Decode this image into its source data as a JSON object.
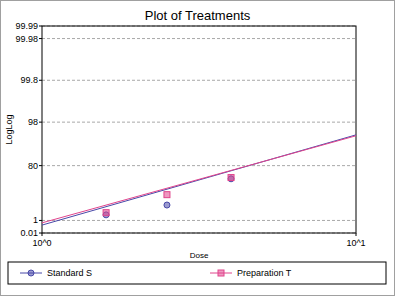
{
  "chart_data": {
    "type": "scatter",
    "title": "Plot of Treatments",
    "x_label": "Dose",
    "y_label": "LogLog",
    "log": true,
    "grid": true,
    "legend": "bottom",
    "xlim": [
      1,
      10
    ],
    "xticks": [
      {
        "value": 1,
        "label": "10^0"
      },
      {
        "value": 10,
        "label": "10^1"
      }
    ],
    "ylim": [
      0.01,
      99.99
    ],
    "yticks": [
      0.01,
      1,
      80,
      98,
      99.8,
      99.98,
      99.99
    ],
    "x": [
      1.6,
      2.5,
      4
    ],
    "fit_x": [
      1,
      10
    ],
    "series": [
      {
        "name": "Standard S",
        "color": "#4848a8",
        "marker": "circle",
        "values": [
          3.4,
          14,
          63
        ],
        "fit": [
          0.26,
          96
        ]
      },
      {
        "name": "Preparation T",
        "color": "#e0448c",
        "marker": "square",
        "values": [
          5,
          33,
          65
        ],
        "fit": [
          0.52,
          95.8
        ]
      }
    ]
  }
}
